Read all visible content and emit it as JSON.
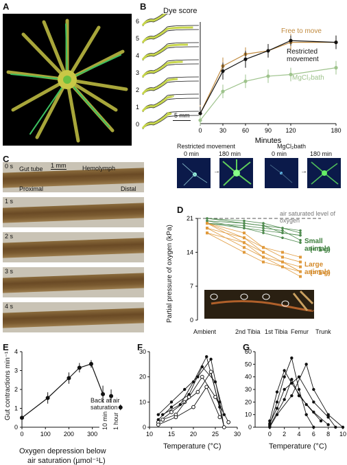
{
  "panels": {
    "A": "A",
    "B": "B",
    "C": "C",
    "D": "D",
    "E": "E",
    "F": "F",
    "G": "G"
  },
  "panelB": {
    "dye_score_title": "Dye score",
    "dye_scores": [
      "6",
      "5",
      "4",
      "3",
      "2",
      "1",
      "0"
    ],
    "scale_bar": "5 mm",
    "xlabel": "Minutes",
    "legend": {
      "free": "Free to move",
      "restricted": "Restricted movement",
      "mgcl": "MgCl₂bath"
    },
    "thumbs": {
      "restricted_title": "Restricted movement",
      "mgcl_title": "MgCl₂bath",
      "t0": "0 min",
      "t180": "180 min"
    }
  },
  "panelC": {
    "frames": [
      "0 s",
      "1 s",
      "2 s",
      "3 s",
      "4 s"
    ],
    "gut_tube": "Gut tube",
    "hemolymph": "Hemolymph",
    "proximal": "Proximal",
    "distal": "Distal",
    "scale": "1 mm"
  },
  "panelD": {
    "ylabel": "Partial pressure of oxygen (kPa)",
    "air_note": "air saturated level of oxygen",
    "small": "Small animals",
    "small_sub": "(< 1 g)",
    "large": "Large animals",
    "large_sub": "(> 1 g)",
    "x_labels": [
      "Ambient",
      "2nd Tibia",
      "1st Tibia",
      "Femur",
      "Trunk"
    ]
  },
  "panelE": {
    "ylabel": "Gut contractions min⁻¹",
    "xlabel_1": "Oxygen depression below",
    "xlabel_2": "air saturation (µmol⁻¹L)",
    "back_at_air": "Back at air saturation",
    "ten_min": "10 min",
    "one_hour": "1 hour"
  },
  "panelF": {
    "xlabel": "Temperature (°C)"
  },
  "panelG": {
    "xlabel": "Temperature (°C)"
  },
  "chart_data": [
    {
      "id": "B",
      "type": "line",
      "xlabel": "Minutes",
      "ylabel": "Dye score",
      "x": [
        0,
        30,
        60,
        90,
        120,
        180
      ],
      "xlim": [
        0,
        180
      ],
      "ylim": [
        0,
        6
      ],
      "yticks": [
        0,
        1,
        2,
        3,
        4,
        5,
        6
      ],
      "xticks": [
        0,
        30,
        60,
        90,
        120,
        180
      ],
      "series": [
        {
          "name": "Free to move",
          "color": "#c08a3e",
          "values": [
            0.6,
            3.4,
            4.1,
            4.3,
            4.8,
            4.8
          ],
          "err": [
            0.5,
            0.5,
            0.4,
            0.4,
            0.5,
            0.4
          ]
        },
        {
          "name": "Restricted movement",
          "color": "#111111",
          "values": [
            0.6,
            3.1,
            3.8,
            4.3,
            4.9,
            4.8
          ],
          "err": [
            0.4,
            0.5,
            0.5,
            0.4,
            0.3,
            0.4
          ]
        },
        {
          "name": "MgCl₂bath",
          "color": "#9ec38c",
          "values": [
            0.2,
            1.9,
            2.5,
            2.8,
            2.9,
            3.3
          ],
          "err": [
            0.3,
            0.4,
            0.4,
            0.4,
            0.4,
            0.4
          ]
        }
      ]
    },
    {
      "id": "D",
      "type": "line",
      "ylabel": "Partial pressure of oxygen (kPa)",
      "ylim": [
        0,
        21
      ],
      "yticks": [
        0,
        7,
        14,
        21
      ],
      "categories": [
        "Ambient",
        "2nd Tibia",
        "1st Tibia",
        "Femur",
        "Trunk"
      ]
    },
    {
      "id": "E",
      "type": "line",
      "ylabel": "Gut contractions min⁻¹",
      "ylim": [
        0,
        4
      ],
      "yticks": [
        0,
        1,
        2,
        3,
        4
      ],
      "xlim": [
        0,
        450
      ],
      "xticks": [
        0,
        100,
        200,
        300
      ],
      "x": [
        0,
        110,
        200,
        245,
        295,
        345,
        380
      ],
      "values": [
        0.5,
        1.55,
        2.6,
        3.15,
        3.35,
        1.75,
        1.65
      ],
      "err": [
        0.2,
        0.3,
        0.3,
        0.25,
        0.2,
        0.45,
        0.35
      ],
      "extra": {
        "x": 420,
        "value": 1.05,
        "err": 0.15
      }
    },
    {
      "id": "F",
      "type": "scatter",
      "xlabel": "Temperature (°C)",
      "xlim": [
        10,
        30
      ],
      "ylim": [
        0,
        30
      ],
      "xticks": [
        10,
        15,
        20,
        25,
        30
      ],
      "yticks": [
        0,
        10,
        20,
        30
      ]
    },
    {
      "id": "G",
      "type": "scatter",
      "xlabel": "Temperature (°C)",
      "xlim": [
        -2,
        10
      ],
      "ylim": [
        0,
        60
      ],
      "xticks": [
        0,
        2,
        4,
        6,
        8,
        10
      ],
      "yticks": [
        0,
        10,
        20,
        30,
        40,
        50,
        60
      ]
    }
  ]
}
